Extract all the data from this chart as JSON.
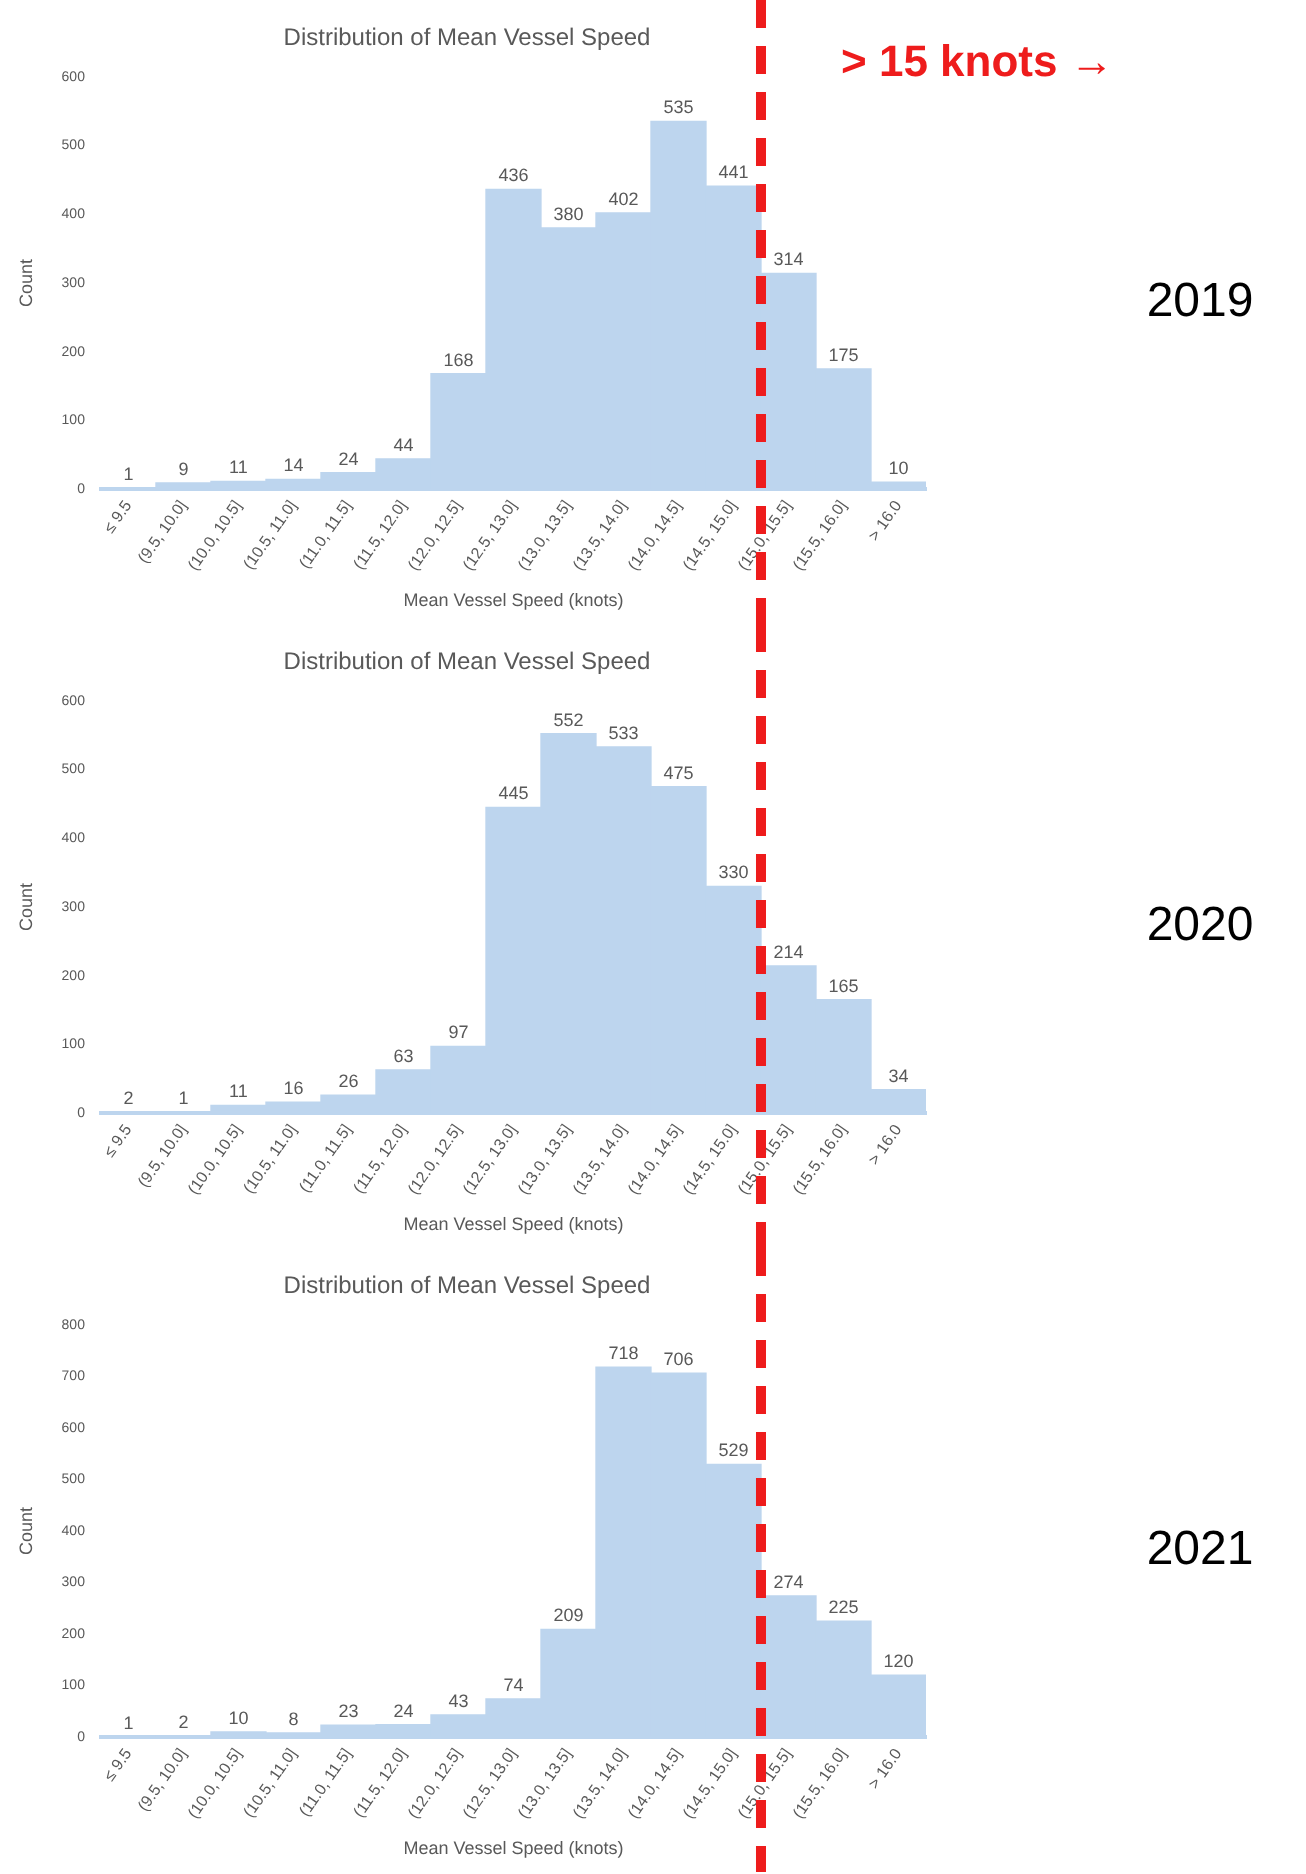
{
  "chart_data": [
    {
      "type": "bar",
      "title": "Distribution of Mean Vessel Speed",
      "xlabel": "Mean Vessel Speed (knots)",
      "ylabel": "Count",
      "categories": [
        "≤ 9.5",
        "(9.5, 10.0]",
        "(10.0, 10.5]",
        "(10.5, 11.0]",
        "(11.0, 11.5]",
        "(11.5, 12.0]",
        "(12.0, 12.5]",
        "(12.5, 13.0]",
        "(13.0, 13.5]",
        "(13.5, 14.0]",
        "(14.0, 14.5]",
        "(14.5, 15.0]",
        "(15.0, 15.5]",
        "(15.5, 16.0]",
        "> 16.0"
      ],
      "values": [
        1,
        9,
        11,
        14,
        24,
        44,
        168,
        436,
        380,
        402,
        535,
        441,
        314,
        175,
        10
      ],
      "color": "#bdd5ee",
      "ylim": [
        0,
        600
      ],
      "yticks": [
        0,
        100,
        200,
        300,
        400,
        500,
        600
      ],
      "grid": false,
      "legend": false,
      "data_labels": true,
      "ref_lines": [
        {
          "axis": "x",
          "value": "(15.0, 15.5]",
          "label": "> 15 knots →",
          "color": "#ee1c1c",
          "line_style": "dashed"
        }
      ],
      "annotations": [
        "2019"
      ]
    },
    {
      "type": "bar",
      "title": "Distribution of Mean Vessel Speed",
      "xlabel": "Mean Vessel Speed (knots)",
      "ylabel": "Count",
      "categories": [
        "≤ 9.5",
        "(9.5, 10.0]",
        "(10.0, 10.5]",
        "(10.5, 11.0]",
        "(11.0, 11.5]",
        "(11.5, 12.0]",
        "(12.0, 12.5]",
        "(12.5, 13.0]",
        "(13.0, 13.5]",
        "(13.5, 14.0]",
        "(14.0, 14.5]",
        "(14.5, 15.0]",
        "(15.0, 15.5]",
        "(15.5, 16.0]",
        "> 16.0"
      ],
      "values": [
        2,
        1,
        11,
        16,
        26,
        63,
        97,
        445,
        552,
        533,
        475,
        330,
        214,
        165,
        34
      ],
      "color": "#bdd5ee",
      "ylim": [
        0,
        600
      ],
      "yticks": [
        0,
        100,
        200,
        300,
        400,
        500,
        600
      ],
      "grid": false,
      "legend": false,
      "data_labels": true,
      "ref_lines": [
        {
          "axis": "x",
          "value": "(15.0, 15.5]",
          "color": "#ee1c1c",
          "line_style": "dashed"
        }
      ],
      "annotations": [
        "2020"
      ]
    },
    {
      "type": "bar",
      "title": "Distribution of Mean Vessel Speed",
      "xlabel": "Mean Vessel Speed (knots)",
      "ylabel": "Count",
      "categories": [
        "≤ 9.5",
        "(9.5, 10.0]",
        "(10.0, 10.5]",
        "(10.5, 11.0]",
        "(11.0, 11.5]",
        "(11.5, 12.0]",
        "(12.0, 12.5]",
        "(12.5, 13.0]",
        "(13.0, 13.5]",
        "(13.5, 14.0]",
        "(14.0, 14.5]",
        "(14.5, 15.0]",
        "(15.0, 15.5]",
        "(15.5, 16.0]",
        "> 16.0"
      ],
      "values": [
        1,
        2,
        10,
        8,
        23,
        24,
        43,
        74,
        209,
        718,
        706,
        529,
        274,
        225,
        120
      ],
      "color": "#bdd5ee",
      "ylim": [
        0,
        800
      ],
      "yticks": [
        0,
        100,
        200,
        300,
        400,
        500,
        600,
        700,
        800
      ],
      "grid": false,
      "legend": false,
      "data_labels": true,
      "ref_lines": [
        {
          "axis": "x",
          "value": "(15.0, 15.5]",
          "color": "#ee1c1c",
          "line_style": "dashed"
        }
      ],
      "annotations": [
        "2021"
      ]
    }
  ]
}
